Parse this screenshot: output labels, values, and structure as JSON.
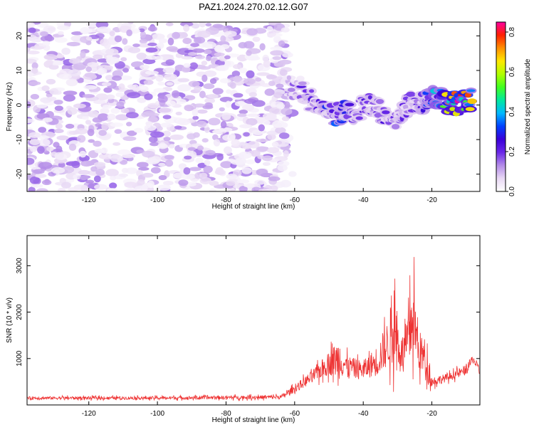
{
  "title": "PAZ1.2024.270.02.12.G07",
  "chart_data": [
    {
      "type": "heatmap",
      "xlabel": "Height of straight line (km)",
      "ylabel": "Frequency (Hz)",
      "xlim": [
        -138,
        -6
      ],
      "ylim": [
        -25,
        24
      ],
      "xticks": [
        -120,
        -100,
        -80,
        -60,
        -40,
        -20
      ],
      "yticks": [
        -20,
        -10,
        0,
        10,
        20
      ],
      "colorbar": {
        "label": "Normalized spectral amplitude",
        "range": [
          0.0,
          0.85
        ],
        "ticks": [
          0.0,
          0.2,
          0.4,
          0.6,
          0.8
        ],
        "colormap": [
          "#ffffff",
          "#e8d8f4",
          "#b48ce8",
          "#6a28e8",
          "#3a00d8",
          "#0040ff",
          "#00b8ff",
          "#00e8a0",
          "#40ff20",
          "#b0ff00",
          "#ffe800",
          "#ff9000",
          "#ff2000",
          "#ff00a0"
        ]
      },
      "features": {
        "noise_region_x": [
          -138,
          -62
        ],
        "noise_amplitude": 0.1,
        "signal_track": [
          {
            "x": -62,
            "y": 6,
            "a": 0.1
          },
          {
            "x": -57,
            "y": 3,
            "a": 0.25
          },
          {
            "x": -54,
            "y": 0,
            "a": 0.22
          },
          {
            "x": -50,
            "y": -3,
            "a": 0.3
          },
          {
            "x": -46,
            "y": -2,
            "a": 0.4
          },
          {
            "x": -42,
            "y": -2,
            "a": 0.25
          },
          {
            "x": -38,
            "y": 1,
            "a": 0.22
          },
          {
            "x": -34,
            "y": -3,
            "a": 0.25
          },
          {
            "x": -30,
            "y": -4,
            "a": 0.2
          },
          {
            "x": -27,
            "y": 0,
            "a": 0.22
          },
          {
            "x": -23,
            "y": 1,
            "a": 0.25
          },
          {
            "x": -20,
            "y": 2,
            "a": 0.35
          },
          {
            "x": -16,
            "y": 1,
            "a": 0.65
          },
          {
            "x": -12,
            "y": 0,
            "a": 0.82
          },
          {
            "x": -8,
            "y": 2,
            "a": 0.65
          }
        ]
      }
    },
    {
      "type": "line",
      "xlabel": "Height of straight line (km)",
      "ylabel": "SNR (10 * v/v)",
      "xlim": [
        -138,
        -6
      ],
      "ylim": [
        0,
        3650
      ],
      "xticks": [
        -120,
        -100,
        -80,
        -60,
        -40,
        -20
      ],
      "yticks": [
        1000,
        2000,
        3000
      ],
      "color": "#ee3333",
      "envelope": [
        {
          "x": -138,
          "base": 150,
          "amp": 60
        },
        {
          "x": -100,
          "base": 150,
          "amp": 60
        },
        {
          "x": -64,
          "base": 170,
          "amp": 80
        },
        {
          "x": -60,
          "base": 350,
          "amp": 150
        },
        {
          "x": -55,
          "base": 600,
          "amp": 250
        },
        {
          "x": -50,
          "base": 900,
          "amp": 450
        },
        {
          "x": -47,
          "base": 1000,
          "amp": 800
        },
        {
          "x": -45,
          "base": 850,
          "amp": 400
        },
        {
          "x": -40,
          "base": 750,
          "amp": 350
        },
        {
          "x": -36,
          "base": 950,
          "amp": 600
        },
        {
          "x": -33,
          "base": 1300,
          "amp": 900
        },
        {
          "x": -31,
          "base": 1700,
          "amp": 1500
        },
        {
          "x": -29,
          "base": 1100,
          "amp": 600
        },
        {
          "x": -27,
          "base": 1300,
          "amp": 1100
        },
        {
          "x": -25.5,
          "base": 2000,
          "amp": 1650
        },
        {
          "x": -24,
          "base": 1200,
          "amp": 800
        },
        {
          "x": -22,
          "base": 1000,
          "amp": 800
        },
        {
          "x": -20,
          "base": 500,
          "amp": 200
        },
        {
          "x": -15,
          "base": 600,
          "amp": 150
        },
        {
          "x": -10,
          "base": 750,
          "amp": 200
        },
        {
          "x": -8,
          "base": 1000,
          "amp": 150
        },
        {
          "x": -6,
          "base": 700,
          "amp": 150
        }
      ]
    }
  ]
}
